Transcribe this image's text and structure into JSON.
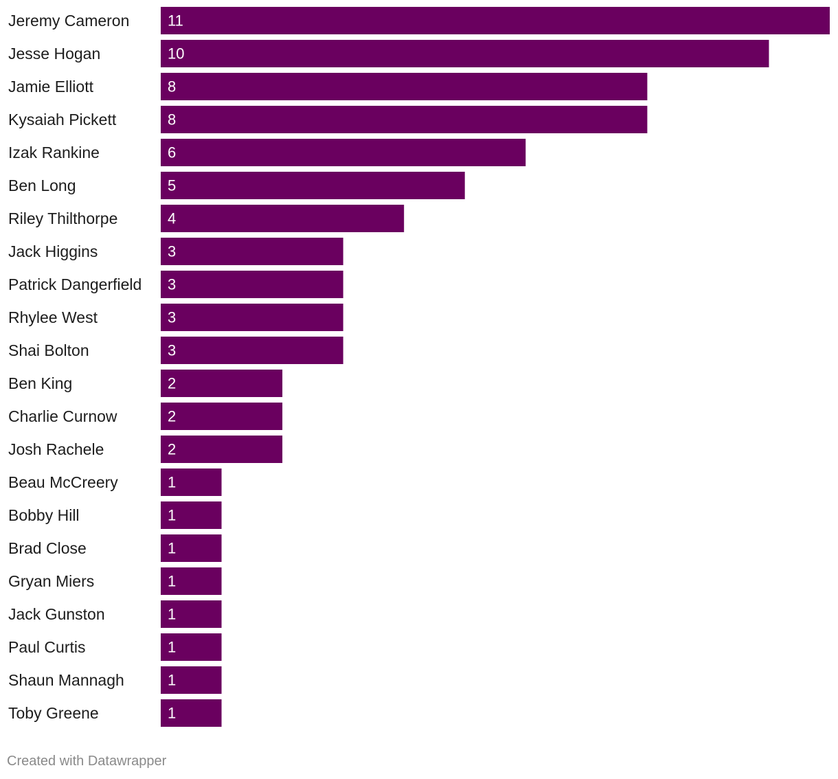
{
  "chart_data": {
    "type": "bar",
    "orientation": "horizontal",
    "categories": [
      "Jeremy Cameron",
      "Jesse Hogan",
      "Jamie Elliott",
      "Kysaiah Pickett",
      "Izak Rankine",
      "Ben Long",
      "Riley Thilthorpe",
      "Jack Higgins",
      "Patrick Dangerfield",
      "Rhylee West",
      "Shai Bolton",
      "Ben King",
      "Charlie Curnow",
      "Josh Rachele",
      "Beau McCreery",
      "Bobby Hill",
      "Brad Close",
      "Gryan Miers",
      "Jack Gunston",
      "Paul Curtis",
      "Shaun Mannagh",
      "Toby Greene"
    ],
    "values": [
      11,
      10,
      8,
      8,
      6,
      5,
      4,
      3,
      3,
      3,
      3,
      2,
      2,
      2,
      1,
      1,
      1,
      1,
      1,
      1,
      1,
      1
    ],
    "value_labels": [
      "11",
      "10",
      "8",
      "8",
      "6",
      "5",
      "4",
      "3",
      "3",
      "3",
      "3",
      "2",
      "2",
      "2",
      "1",
      "1",
      "1",
      "1",
      "1",
      "1",
      "1",
      "1"
    ],
    "xlim": [
      0,
      11
    ],
    "grid": false,
    "legend": "none",
    "bar_color": "#6a005f"
  },
  "footer": {
    "credit": "Created with Datawrapper"
  }
}
